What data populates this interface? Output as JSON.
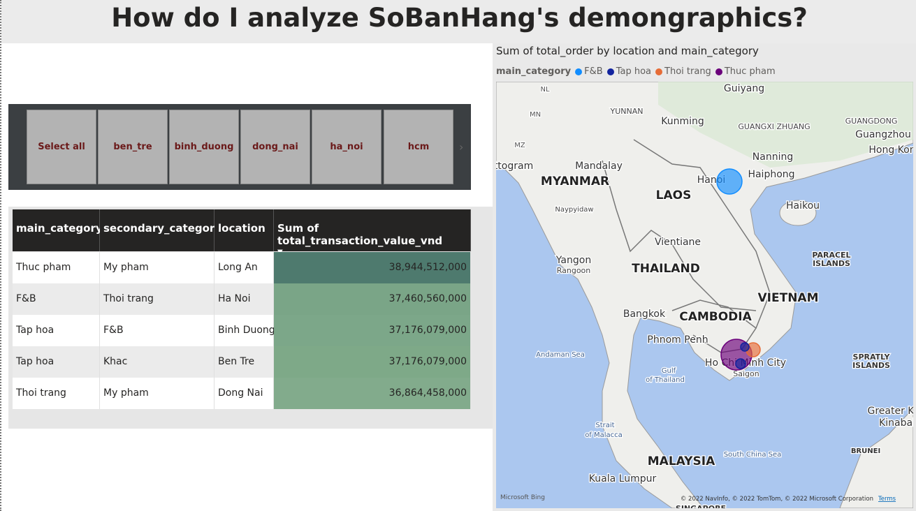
{
  "header": {
    "title": "How do I analyze SoBanHang's demongraphics?"
  },
  "slicer": {
    "buttons": [
      "Select all",
      "ben_tre",
      "binh_duong",
      "dong_nai",
      "ha_noi",
      "hcm"
    ]
  },
  "table": {
    "columns": [
      "main_category",
      "secondary_category",
      "location",
      "Sum of total_transaction_value_vnd"
    ],
    "rows": [
      [
        "Thuc pham",
        "My pham",
        "Long An",
        "38,944,512,000"
      ],
      [
        "F&B",
        "Thoi trang",
        "Ha Noi",
        "37,460,560,000"
      ],
      [
        "Tap hoa",
        "F&B",
        "Binh Duong",
        "37,176,079,000"
      ],
      [
        "Tap hoa",
        "Khac",
        "Ben Tre",
        "37,176,079,000"
      ],
      [
        "Thoi trang",
        "My pham",
        "Dong Nai",
        "36,864,458,000"
      ]
    ]
  },
  "map": {
    "title": "Sum of total_order by location and main_category",
    "legend_title": "main_category",
    "legend": [
      {
        "name": "F&B",
        "color": "#118dff"
      },
      {
        "name": "Tap hoa",
        "color": "#12239e"
      },
      {
        "name": "Thoi trang",
        "color": "#e66c37"
      },
      {
        "name": "Thuc pham",
        "color": "#6b007b"
      }
    ],
    "labels": [
      "NL",
      "Guiyang",
      "MN",
      "YUNNAN",
      "Kunming",
      "GUANGXI ZHUANG",
      "GUANGDONG",
      "Guangzhou",
      "MZ",
      "Hong Kon",
      "Nanning",
      "ttogram",
      "Mandalay",
      "Haiphong",
      "MYANMAR",
      "Hanoi",
      "LAOS",
      "Haikou",
      "Naypyidaw",
      "Vientiane",
      "PARACEL",
      "ISLANDS",
      "Yangon",
      "Rangoon",
      "THAILAND",
      "VIETNAM",
      "Bangkok",
      "CAMBODIA",
      "Phnom Penh",
      "Andaman Sea",
      "SPRATLY",
      "ISLANDS",
      "Ho Chi Minh City",
      "Gulf",
      "of Thailand",
      "Saigon",
      "Greater K",
      "Kinabal",
      "Strait",
      "of Malacca",
      "BRUNEI",
      "South China Sea",
      "MALAYSIA",
      "Kuala Lumpur",
      "SINGAPORE"
    ],
    "bing": "Microsoft Bing",
    "attribution": "© 2022 NavInfo, © 2022 TomTom, © 2022 Microsoft Corporation",
    "terms": "Terms"
  }
}
